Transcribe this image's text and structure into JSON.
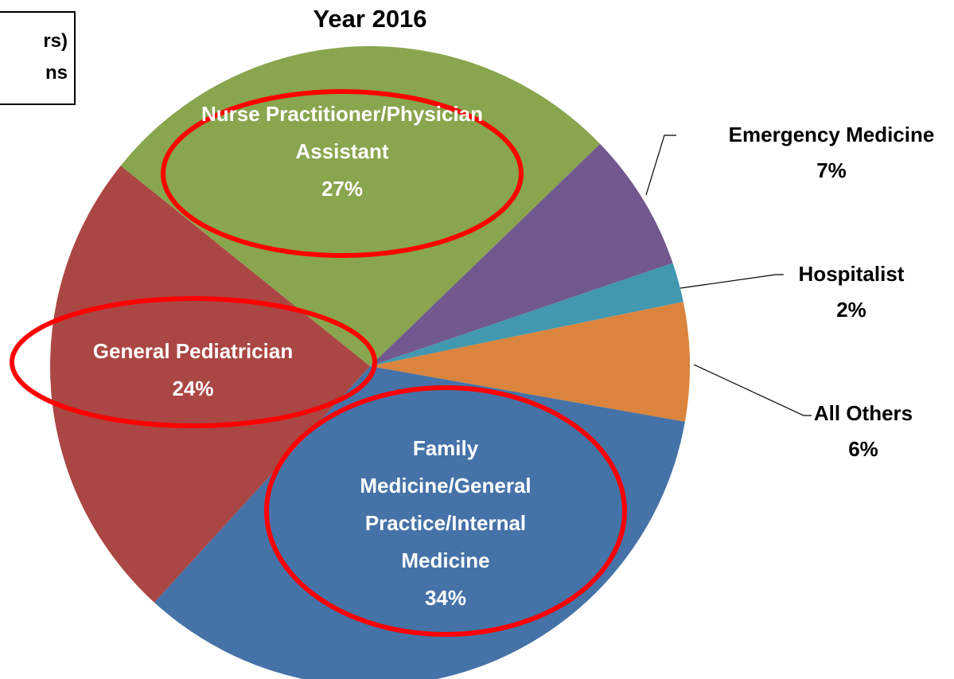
{
  "chart_data": {
    "type": "pie",
    "title": "Year 2016",
    "categories": [
      "Emergency Medicine",
      "Hospitalist",
      "All Others",
      "Family Medicine/General Practice/Internal Medicine",
      "General Pediatrician",
      "Nurse Practitioner/Physician Assistant"
    ],
    "values": [
      7,
      2,
      6,
      34,
      24,
      27
    ],
    "value_labels": [
      "7%",
      "2%",
      "6%",
      "34%",
      "24%",
      "27%"
    ],
    "colors": [
      "#71588f",
      "#4198af",
      "#db843d",
      "#4572a7",
      "#aa4643",
      "#89a54e"
    ],
    "annotation_lines": [
      "rs)",
      "ns"
    ]
  }
}
